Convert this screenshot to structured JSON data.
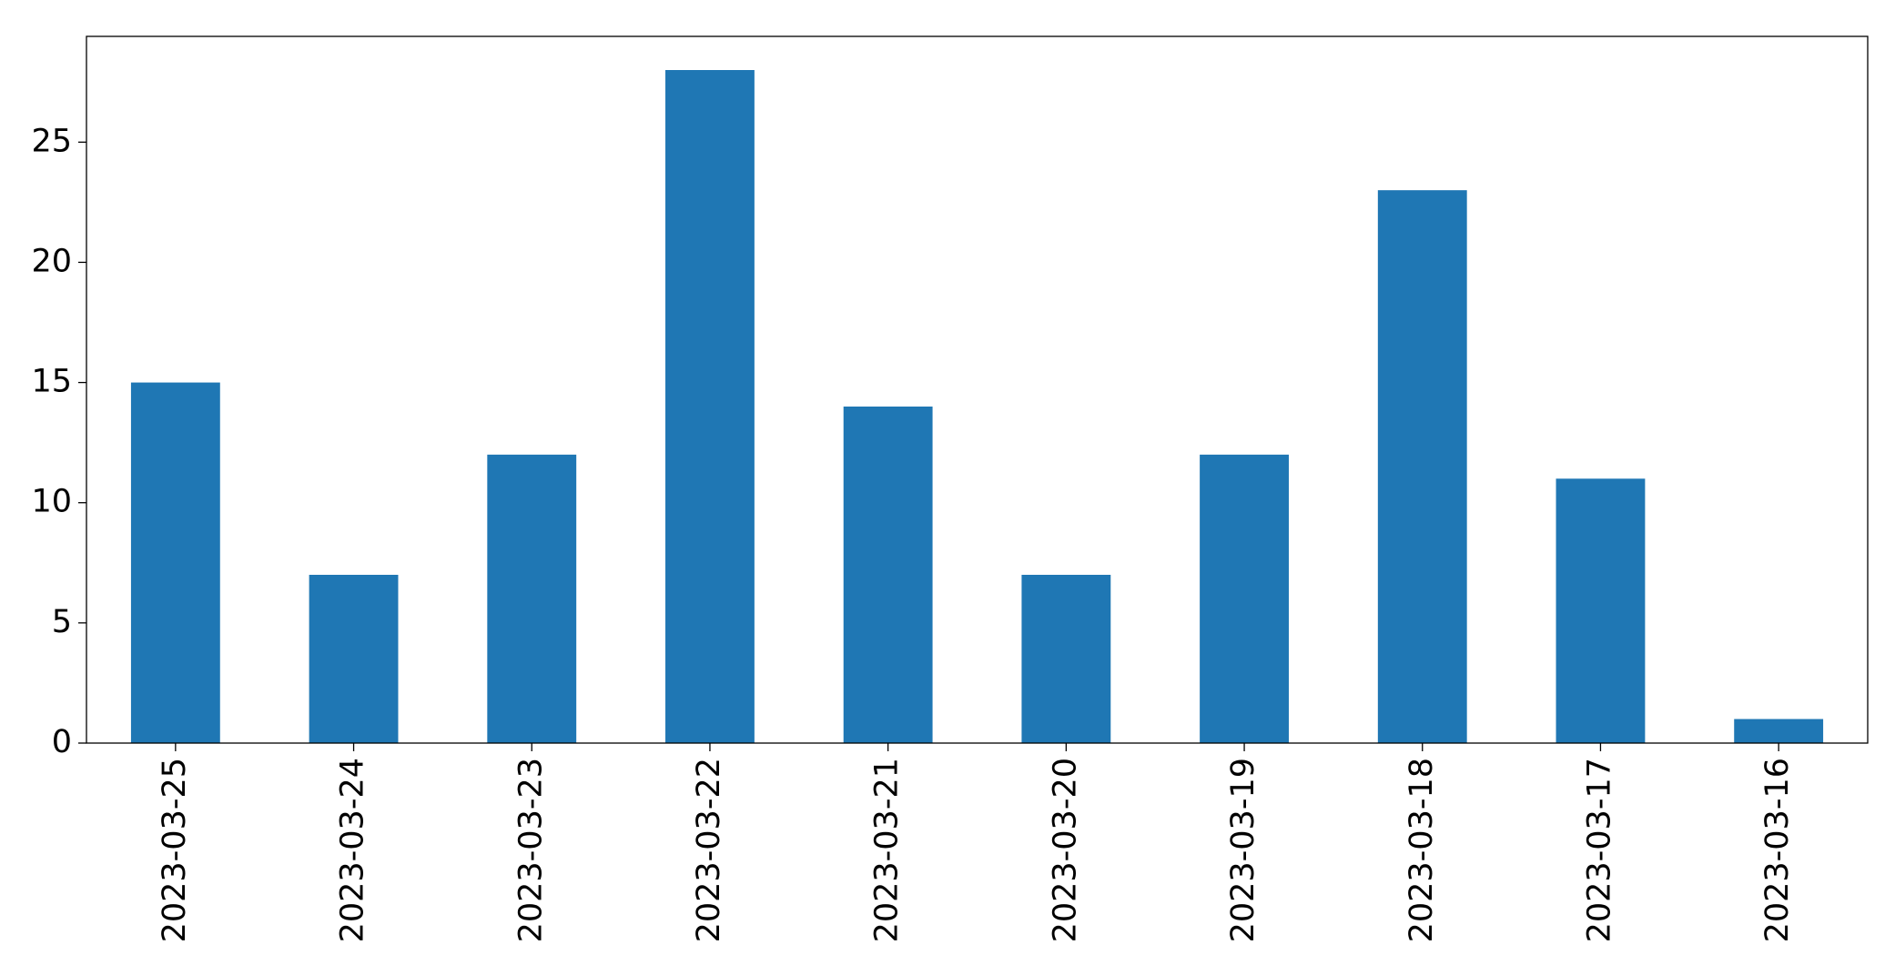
{
  "chart_data": {
    "type": "bar",
    "categories": [
      "2023-03-25",
      "2023-03-24",
      "2023-03-23",
      "2023-03-22",
      "2023-03-21",
      "2023-03-20",
      "2023-03-19",
      "2023-03-18",
      "2023-03-17",
      "2023-03-16"
    ],
    "values": [
      15,
      7,
      12,
      28,
      14,
      7,
      12,
      23,
      11,
      1
    ],
    "color": "#1f77b4",
    "ylim": [
      0,
      29.4
    ],
    "yticks": [
      0,
      5,
      10,
      15,
      20,
      25
    ],
    "grid": false
  }
}
